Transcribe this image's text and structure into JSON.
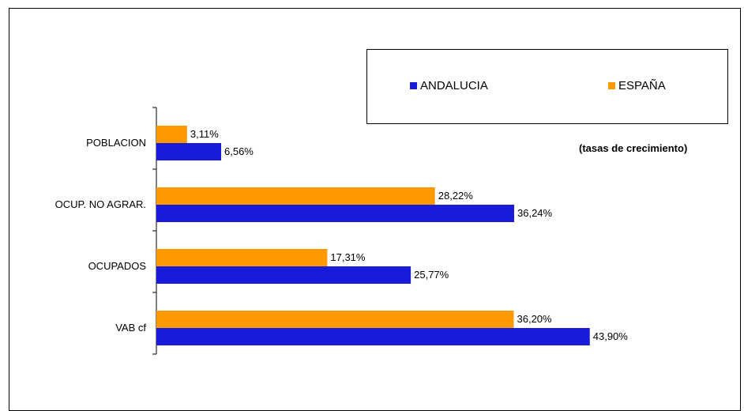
{
  "chart_data": {
    "type": "bar",
    "orientation": "horizontal",
    "categories": [
      "POBLACION",
      "OCUP. NO AGRAR.",
      "OCUPADOS",
      "VAB cf"
    ],
    "series": [
      {
        "name": "ESPAÑA",
        "color": "#ff9900",
        "values": [
          3.11,
          28.22,
          17.31,
          36.2
        ],
        "labels": [
          "3,11%",
          "28,22%",
          "17,31%",
          "36,20%"
        ]
      },
      {
        "name": "ANDALUCIA",
        "color": "#1a1adb",
        "values": [
          6.56,
          36.24,
          25.77,
          43.9
        ],
        "labels": [
          "6,56%",
          "36,24%",
          "25,77%",
          "43,90%"
        ]
      }
    ],
    "annotation": "(tasas de crecimiento)",
    "xlim": [
      0,
      50
    ],
    "grid": false,
    "legend_position": "top-right"
  },
  "legend": {
    "andalucia_label": "ANDALUCIA",
    "espana_label": "ESPAÑA",
    "andalucia_color": "#1a1adb",
    "espana_color": "#ff9900"
  }
}
